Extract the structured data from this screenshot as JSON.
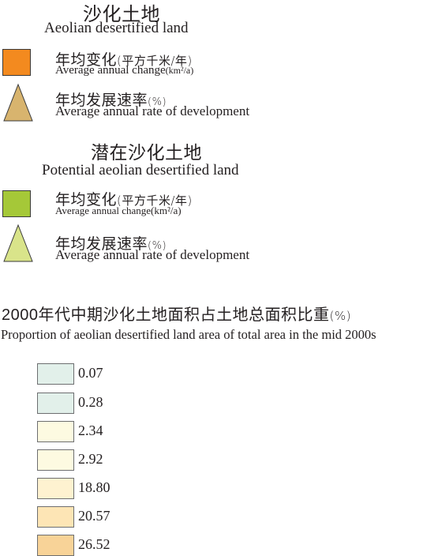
{
  "section1": {
    "title_zh": "沙化土地",
    "title_en": "Aeolian desertified land",
    "change": {
      "zh": "年均变化",
      "zh_unit": "(平方千米/年)",
      "en": "Average annual change",
      "en_unit": "(km²/a)",
      "color": "#f38a1f"
    },
    "rate": {
      "zh": "年均发展速率",
      "zh_unit": "(%)",
      "en": "Average annual rate of development",
      "color": "#d8b46e"
    }
  },
  "section2": {
    "title_zh": "潜在沙化土地",
    "title_en": "Potential aeolian desertified land",
    "change": {
      "zh": "年均变化",
      "zh_unit": "(平方千米/年)",
      "en": "Average annual change(km²/a)",
      "color": "#a5c838"
    },
    "rate": {
      "zh": "年均发展速率",
      "zh_unit": "(%)",
      "en": "Average annual rate of development",
      "color": "#d9e48a"
    }
  },
  "proportion": {
    "title_zh_year": "2000",
    "title_zh": "年代中期沙化土地面积占土地总面积比重",
    "title_zh_unit": "(%)",
    "title_en": "Proportion of aeolian desertified land area of total area in the mid 2000s",
    "classes": [
      {
        "label": "0.07",
        "color": "#e2f0ea"
      },
      {
        "label": "0.28",
        "color": "#e2f0ea"
      },
      {
        "label": "2.34",
        "color": "#fdfae1"
      },
      {
        "label": "2.92",
        "color": "#fdfae1"
      },
      {
        "label": "18.80",
        "color": "#fef2d0"
      },
      {
        "label": "20.57",
        "color": "#fde5b5"
      },
      {
        "label": "26.52",
        "color": "#f8d398"
      }
    ]
  }
}
